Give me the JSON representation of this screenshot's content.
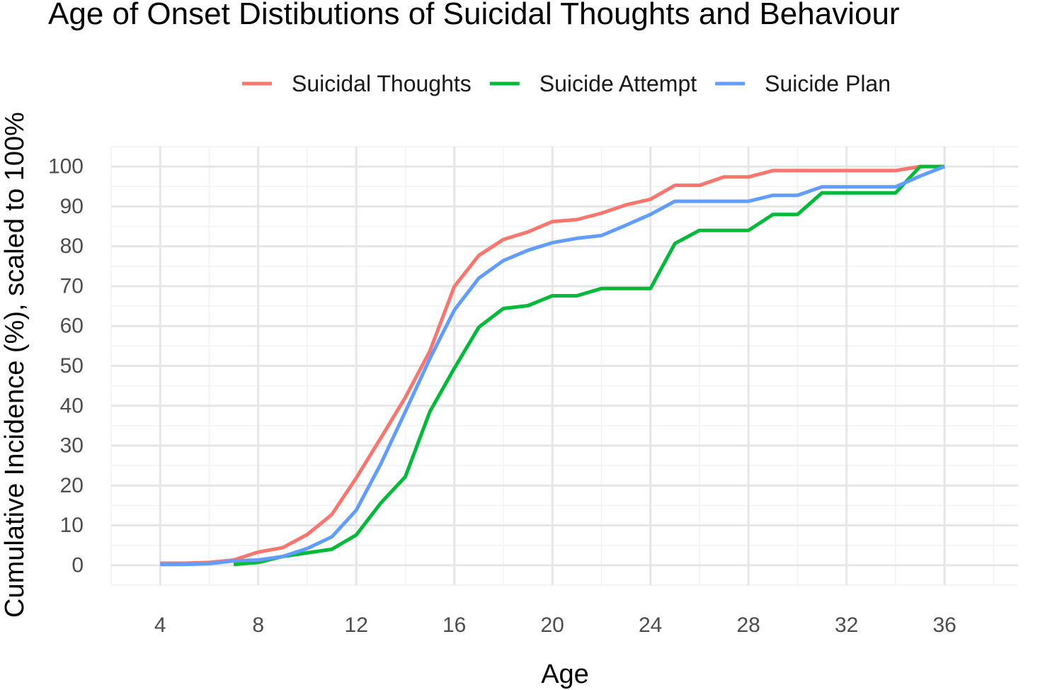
{
  "chart_data": {
    "type": "line",
    "title": "Age of Onset Distibutions of Suicidal Thoughts and Behaviour",
    "xlabel": "Age",
    "ylabel": "Cumulative Incidence (%), scaled to 100%",
    "xlim": [
      2,
      39
    ],
    "ylim": [
      -5,
      105
    ],
    "x_ticks": [
      4,
      8,
      12,
      16,
      20,
      24,
      28,
      32,
      36
    ],
    "y_ticks": [
      0,
      10,
      20,
      30,
      40,
      50,
      60,
      70,
      80,
      90,
      100
    ],
    "grid": true,
    "legend_position": "top",
    "series": [
      {
        "name": "Suicidal Thoughts",
        "color": "#F8766D",
        "x": [
          4,
          5,
          6,
          7,
          8,
          9,
          10,
          11,
          12,
          13,
          14,
          15,
          16,
          17,
          18,
          19,
          20,
          21,
          22,
          23,
          24,
          25,
          26,
          27,
          28,
          29,
          30,
          31,
          32,
          33,
          34,
          35,
          36
        ],
        "y": [
          0.5,
          0.5,
          0.7,
          1.3,
          3.3,
          4.4,
          7.7,
          12.7,
          21.9,
          31.9,
          42.1,
          53.7,
          69.9,
          77.7,
          81.7,
          83.6,
          86.2,
          86.7,
          88.3,
          90.4,
          91.8,
          95.3,
          95.3,
          97.4,
          97.4,
          99.0,
          99.0,
          99.0,
          99.0,
          99.0,
          99.0,
          100,
          100
        ]
      },
      {
        "name": "Suicide Attempt",
        "color": "#00BA38",
        "x": [
          7,
          8,
          9,
          10,
          11,
          12,
          13,
          14,
          15,
          16,
          17,
          18,
          19,
          20,
          21,
          22,
          23,
          24,
          25,
          26,
          27,
          28,
          29,
          30,
          31,
          32,
          33,
          34,
          35,
          36
        ],
        "y": [
          0.2,
          0.7,
          2.2,
          3.1,
          4.0,
          7.6,
          15.6,
          22.2,
          38.5,
          49.4,
          59.7,
          64.4,
          65.1,
          67.6,
          67.6,
          69.4,
          69.4,
          69.4,
          80.7,
          84.0,
          84.0,
          84.0,
          88.0,
          88.0,
          93.4,
          93.4,
          93.4,
          93.4,
          100,
          100
        ]
      },
      {
        "name": "Suicide Plan",
        "color": "#619CFF",
        "x": [
          4,
          5,
          6,
          7,
          8,
          9,
          10,
          11,
          12,
          13,
          14,
          15,
          16,
          17,
          18,
          19,
          20,
          21,
          22,
          23,
          24,
          25,
          26,
          27,
          28,
          29,
          30,
          31,
          32,
          33,
          34,
          35,
          36
        ],
        "y": [
          0.2,
          0.2,
          0.4,
          1.1,
          1.3,
          2.2,
          4.2,
          7.1,
          13.8,
          25.4,
          38.5,
          51.8,
          64.0,
          72.0,
          76.4,
          79.0,
          80.9,
          82.0,
          82.7,
          85.3,
          88.0,
          91.3,
          91.3,
          91.3,
          91.3,
          92.8,
          92.8,
          94.9,
          94.9,
          94.9,
          94.9,
          97.6,
          100
        ]
      }
    ]
  }
}
